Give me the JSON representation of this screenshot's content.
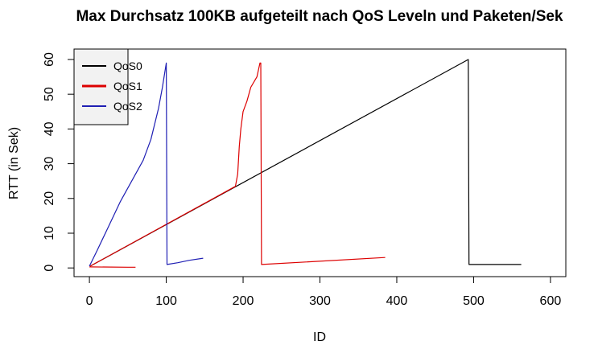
{
  "chart_data": {
    "type": "line",
    "title": "Max Durchsatz 100KB aufgeteilt nach QoS Leveln und Paketen/Sek",
    "xlabel": "ID",
    "ylabel": "RTT (in Sek)",
    "xlim": [
      -20,
      620
    ],
    "ylim": [
      -2.5,
      63
    ],
    "xticks": [
      0,
      100,
      200,
      300,
      400,
      500,
      600
    ],
    "yticks": [
      0,
      10,
      20,
      30,
      40,
      50,
      60
    ],
    "grid": false,
    "legend_position": "top-left",
    "series": [
      {
        "name": "QoS0",
        "color": "#000000",
        "points": [
          [
            1,
            0.5
          ],
          [
            493,
            60
          ],
          [
            494,
            1
          ],
          [
            562,
            1
          ]
        ]
      },
      {
        "name": "QoS1",
        "color": "#dd0000",
        "points": [
          [
            0,
            0.3
          ],
          [
            50,
            0.2
          ],
          [
            60,
            0.2
          ],
          [
            1,
            0.5
          ],
          [
            190,
            23.5
          ],
          [
            193,
            27
          ],
          [
            195,
            35
          ],
          [
            197,
            40
          ],
          [
            200,
            45
          ],
          [
            205,
            48
          ],
          [
            210,
            52
          ],
          [
            218,
            55
          ],
          [
            222,
            59
          ],
          [
            223,
            59
          ],
          [
            224,
            1
          ],
          [
            385,
            3
          ]
        ]
      },
      {
        "name": "QoS2",
        "color": "#1f1fb4",
        "points": [
          [
            0,
            0.5
          ],
          [
            10,
            5
          ],
          [
            25,
            12
          ],
          [
            40,
            19
          ],
          [
            55,
            25
          ],
          [
            70,
            31
          ],
          [
            80,
            37
          ],
          [
            90,
            46
          ],
          [
            95,
            52
          ],
          [
            100,
            59
          ],
          [
            101,
            1
          ],
          [
            115,
            1.5
          ],
          [
            130,
            2.2
          ],
          [
            148,
            2.8
          ]
        ]
      }
    ]
  }
}
